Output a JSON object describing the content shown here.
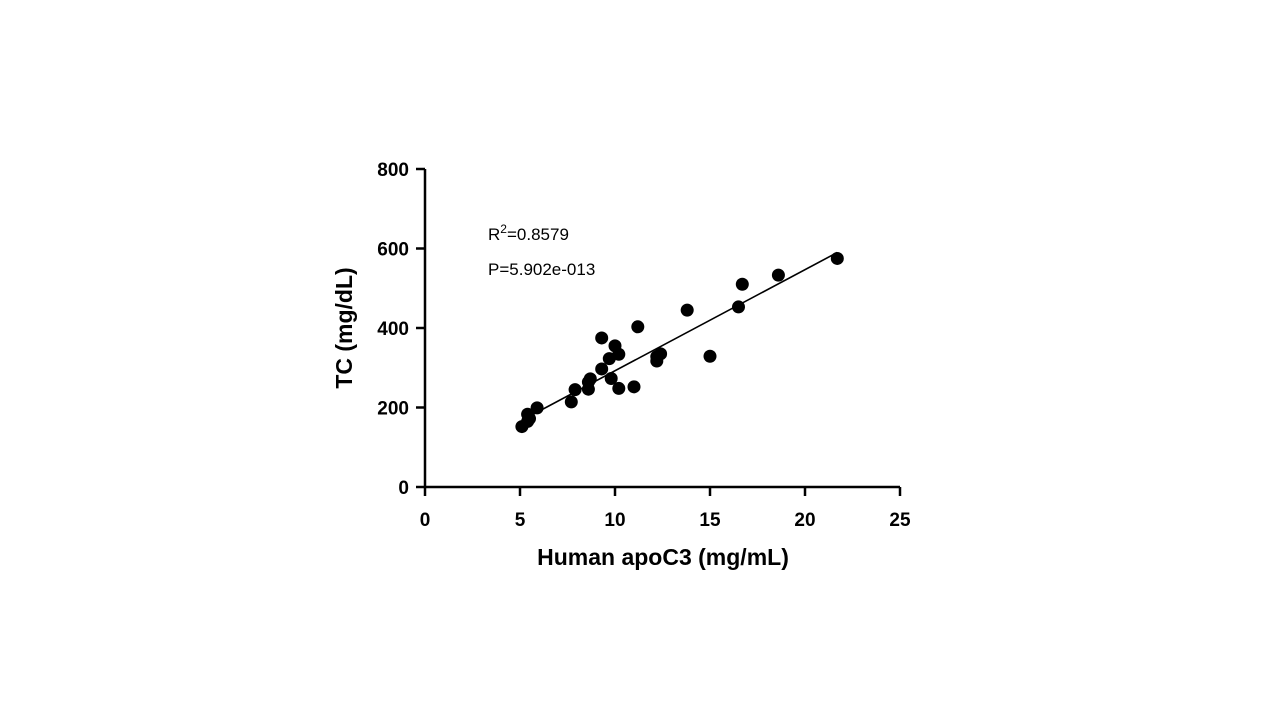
{
  "chart_data": {
    "type": "scatter",
    "xlabel": "Human apoC3 (mg/mL)",
    "ylabel": "TC (mg/dL)",
    "xlim": [
      0,
      25
    ],
    "ylim": [
      0,
      800
    ],
    "xticks": [
      "0",
      "5",
      "10",
      "15",
      "20",
      "25"
    ],
    "yticks": [
      "0",
      "200",
      "400",
      "600",
      "800"
    ],
    "grid": false,
    "legend": "none",
    "point_color": "#000000",
    "points": [
      {
        "x": 5.1,
        "y": 152
      },
      {
        "x": 5.4,
        "y": 165
      },
      {
        "x": 5.5,
        "y": 172
      },
      {
        "x": 5.4,
        "y": 183
      },
      {
        "x": 5.9,
        "y": 199
      },
      {
        "x": 7.7,
        "y": 214
      },
      {
        "x": 7.9,
        "y": 245
      },
      {
        "x": 8.6,
        "y": 246
      },
      {
        "x": 8.6,
        "y": 264
      },
      {
        "x": 8.7,
        "y": 272
      },
      {
        "x": 9.3,
        "y": 297
      },
      {
        "x": 9.3,
        "y": 375
      },
      {
        "x": 9.7,
        "y": 323
      },
      {
        "x": 9.8,
        "y": 273
      },
      {
        "x": 10.0,
        "y": 355
      },
      {
        "x": 10.2,
        "y": 334
      },
      {
        "x": 10.2,
        "y": 248
      },
      {
        "x": 11.0,
        "y": 252
      },
      {
        "x": 11.2,
        "y": 403
      },
      {
        "x": 12.2,
        "y": 328
      },
      {
        "x": 12.2,
        "y": 317
      },
      {
        "x": 12.4,
        "y": 335
      },
      {
        "x": 13.8,
        "y": 445
      },
      {
        "x": 15.0,
        "y": 329
      },
      {
        "x": 16.5,
        "y": 453
      },
      {
        "x": 16.7,
        "y": 510
      },
      {
        "x": 18.6,
        "y": 533
      },
      {
        "x": 21.7,
        "y": 575
      }
    ],
    "regression": {
      "x_start": 5.5,
      "y_start": 178,
      "x_end": 21.7,
      "y_end": 590
    },
    "annotations": {
      "r2_prefix": "R",
      "r2_superscript": "2",
      "r2_value": "=0.8579",
      "p_value": "P=5.902e-013"
    }
  }
}
